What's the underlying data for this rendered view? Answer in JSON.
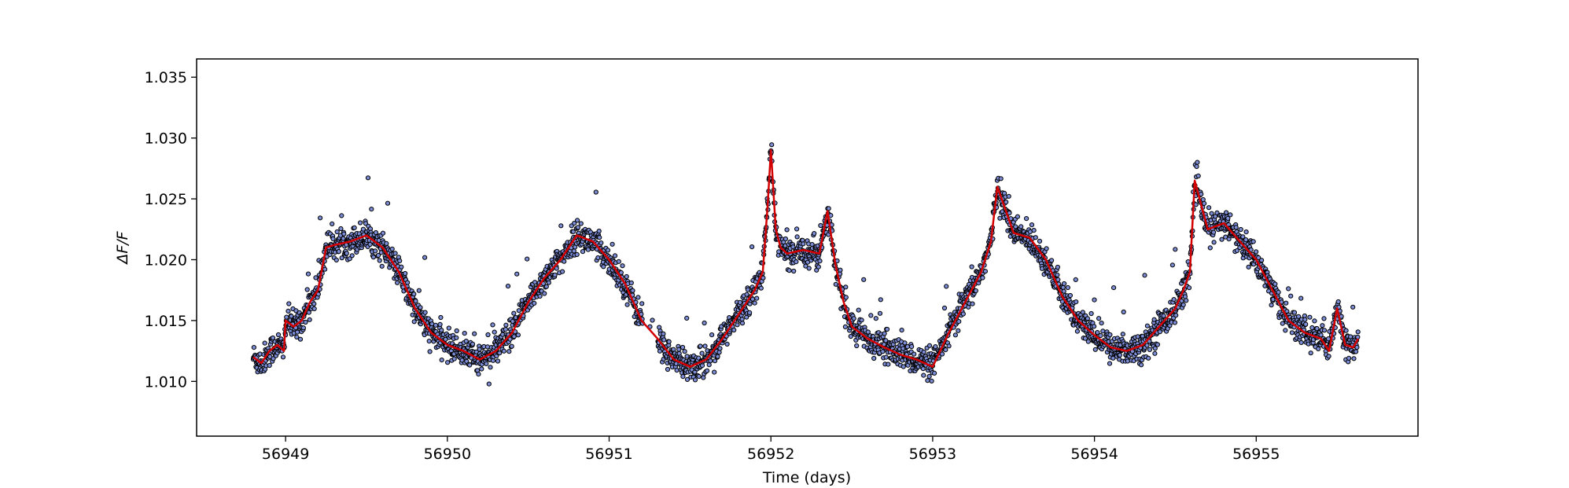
{
  "chart_data": {
    "type": "scatter",
    "xlabel": "Time (days)",
    "ylabel": "ΔF/F",
    "xlim": [
      56948.45,
      56956.0
    ],
    "ylim": [
      1.0055,
      1.0365
    ],
    "xticks": [
      56949,
      56950,
      56951,
      56952,
      56953,
      56954,
      56955
    ],
    "yticks": [
      1.01,
      1.015,
      1.02,
      1.025,
      1.03,
      1.035
    ],
    "xtick_labels": [
      "56949",
      "56950",
      "56951",
      "56952",
      "56953",
      "56954",
      "56955"
    ],
    "ytick_labels": [
      "1.010",
      "1.015",
      "1.020",
      "1.025",
      "1.030",
      "1.035"
    ],
    "grid": false,
    "series": [
      {
        "kind": "points",
        "color": "#7b8bd4",
        "edge_color": "#000000",
        "x_range": [
          56948.8,
          56955.63
        ],
        "cadence": 0.0021
      },
      {
        "kind": "line",
        "color": "#d40000",
        "x": [
          56948.8,
          56948.85,
          56948.9,
          56948.95,
          56948.99,
          56949.0,
          56949.05,
          56949.1,
          56949.15,
          56949.2,
          56949.25,
          56949.3,
          56949.4,
          56949.5,
          56949.6,
          56949.7,
          56949.8,
          56949.9,
          56950.0,
          56950.1,
          56950.2,
          56950.3,
          56950.4,
          56950.5,
          56950.6,
          56950.7,
          56950.8,
          56950.9,
          56951.0,
          56951.1,
          56951.15,
          56951.2,
          56951.3,
          56951.4,
          56951.5,
          56951.6,
          56951.7,
          56951.8,
          56951.9,
          56951.95,
          56951.98,
          56952.0,
          56952.03,
          56952.06,
          56952.1,
          56952.2,
          56952.3,
          56952.35,
          56952.4,
          56952.45,
          56952.5,
          56952.6,
          56952.7,
          56952.8,
          56952.9,
          56953.0,
          56953.1,
          56953.2,
          56953.3,
          56953.36,
          56953.4,
          56953.5,
          56953.6,
          56953.7,
          56953.8,
          56953.9,
          56954.0,
          56954.1,
          56954.2,
          56954.3,
          56954.4,
          56954.5,
          56954.55,
          56954.59,
          56954.62,
          56954.7,
          56954.8,
          56954.9,
          56955.0,
          56955.1,
          56955.2,
          56955.3,
          56955.4,
          56955.45,
          56955.5,
          56955.55,
          56955.6,
          56955.63
        ],
        "y": [
          1.012,
          1.0115,
          1.0125,
          1.013,
          1.0125,
          1.015,
          1.0145,
          1.015,
          1.0165,
          1.0175,
          1.021,
          1.0212,
          1.0215,
          1.022,
          1.021,
          1.019,
          1.016,
          1.014,
          1.013,
          1.0125,
          1.0118,
          1.0125,
          1.014,
          1.0165,
          1.0185,
          1.02,
          1.022,
          1.0215,
          1.02,
          1.018,
          1.0165,
          1.015,
          1.0135,
          1.0118,
          1.0112,
          1.0118,
          1.0135,
          1.0155,
          1.0175,
          1.019,
          1.0245,
          1.029,
          1.0225,
          1.021,
          1.0205,
          1.0208,
          1.0205,
          1.024,
          1.0195,
          1.0165,
          1.0145,
          1.0135,
          1.0128,
          1.0122,
          1.0118,
          1.0112,
          1.014,
          1.0165,
          1.019,
          1.0215,
          1.026,
          1.0222,
          1.0218,
          1.02,
          1.017,
          1.015,
          1.0138,
          1.0128,
          1.0125,
          1.013,
          1.0145,
          1.016,
          1.0175,
          1.019,
          1.0265,
          1.0225,
          1.023,
          1.0215,
          1.02,
          1.0175,
          1.015,
          1.014,
          1.0135,
          1.0125,
          1.016,
          1.013,
          1.0128,
          1.0135
        ]
      }
    ]
  }
}
